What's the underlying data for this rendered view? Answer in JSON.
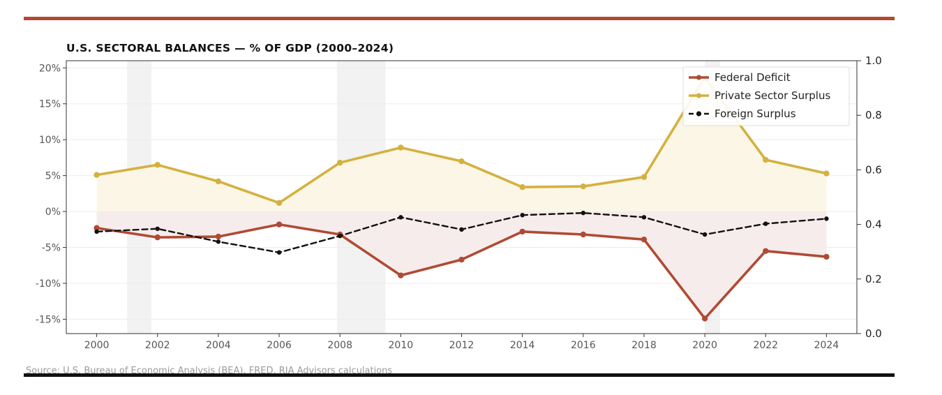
{
  "chart_data": {
    "type": "line",
    "title": "U.S. SECTORAL BALANCES — % OF GDP (2000–2024)",
    "source": "Source: U.S. Bureau of Economic Analysis (BEA), FRED, RIA Advisors calculations",
    "x": [
      2000,
      2002,
      2004,
      2006,
      2008,
      2010,
      2012,
      2014,
      2016,
      2018,
      2020,
      2022,
      2024
    ],
    "x_ticks": [
      "2000",
      "2002",
      "2004",
      "2006",
      "2008",
      "2010",
      "2012",
      "2014",
      "2016",
      "2018",
      "2020",
      "2022",
      "2024"
    ],
    "xlim": [
      1999.0,
      2025.0
    ],
    "ylim": [
      -17,
      21
    ],
    "y_ticks": [
      20,
      15,
      10,
      5,
      0,
      -5,
      -10,
      -15
    ],
    "y_tick_labels": [
      "20%",
      "15%",
      "10%",
      "5%",
      "0%",
      "-5%",
      "-10%",
      "-15%"
    ],
    "y2lim": [
      0.0,
      1.0
    ],
    "y2_ticks": [
      1.0,
      0.8,
      0.6,
      0.4,
      0.2,
      0.0
    ],
    "y2_tick_labels": [
      "1.0",
      "0.8",
      "0.6",
      "0.4",
      "0.2",
      "0.0"
    ],
    "recessions": [
      [
        2001.0,
        2001.8
      ],
      [
        2007.9,
        2009.5
      ],
      [
        2020.0,
        2020.5
      ]
    ],
    "grid": true,
    "legend_position": "top-right",
    "series": [
      {
        "name": "Federal Deficit",
        "color": "#b04a34",
        "style": "solid",
        "values": [
          -2.3,
          -3.6,
          -3.5,
          -1.8,
          -3.2,
          -8.9,
          -6.7,
          -2.8,
          -3.2,
          -3.9,
          -14.9,
          -5.5,
          -6.3
        ]
      },
      {
        "name": "Private Sector Surplus",
        "color": "#d4b13e",
        "style": "solid",
        "values": [
          5.1,
          6.5,
          4.2,
          1.2,
          6.8,
          8.9,
          7.0,
          3.4,
          3.5,
          4.8,
          18.7,
          7.2,
          5.3
        ]
      },
      {
        "name": "Foreign Surplus",
        "color": "#111111",
        "style": "dashed",
        "values": [
          -2.8,
          -2.4,
          -4.2,
          -5.7,
          -3.4,
          -0.8,
          -2.5,
          -0.5,
          -0.2,
          -0.8,
          -3.2,
          -1.7,
          -1.0
        ]
      }
    ]
  },
  "colors": {
    "top_rule": "#b04a34",
    "bottom_rule": "#111111",
    "recession_band": "#f2f2f2",
    "grid": "#ececec",
    "deficit_fill": "#f6eceb",
    "surplus_fill": "#fbf6e6"
  }
}
